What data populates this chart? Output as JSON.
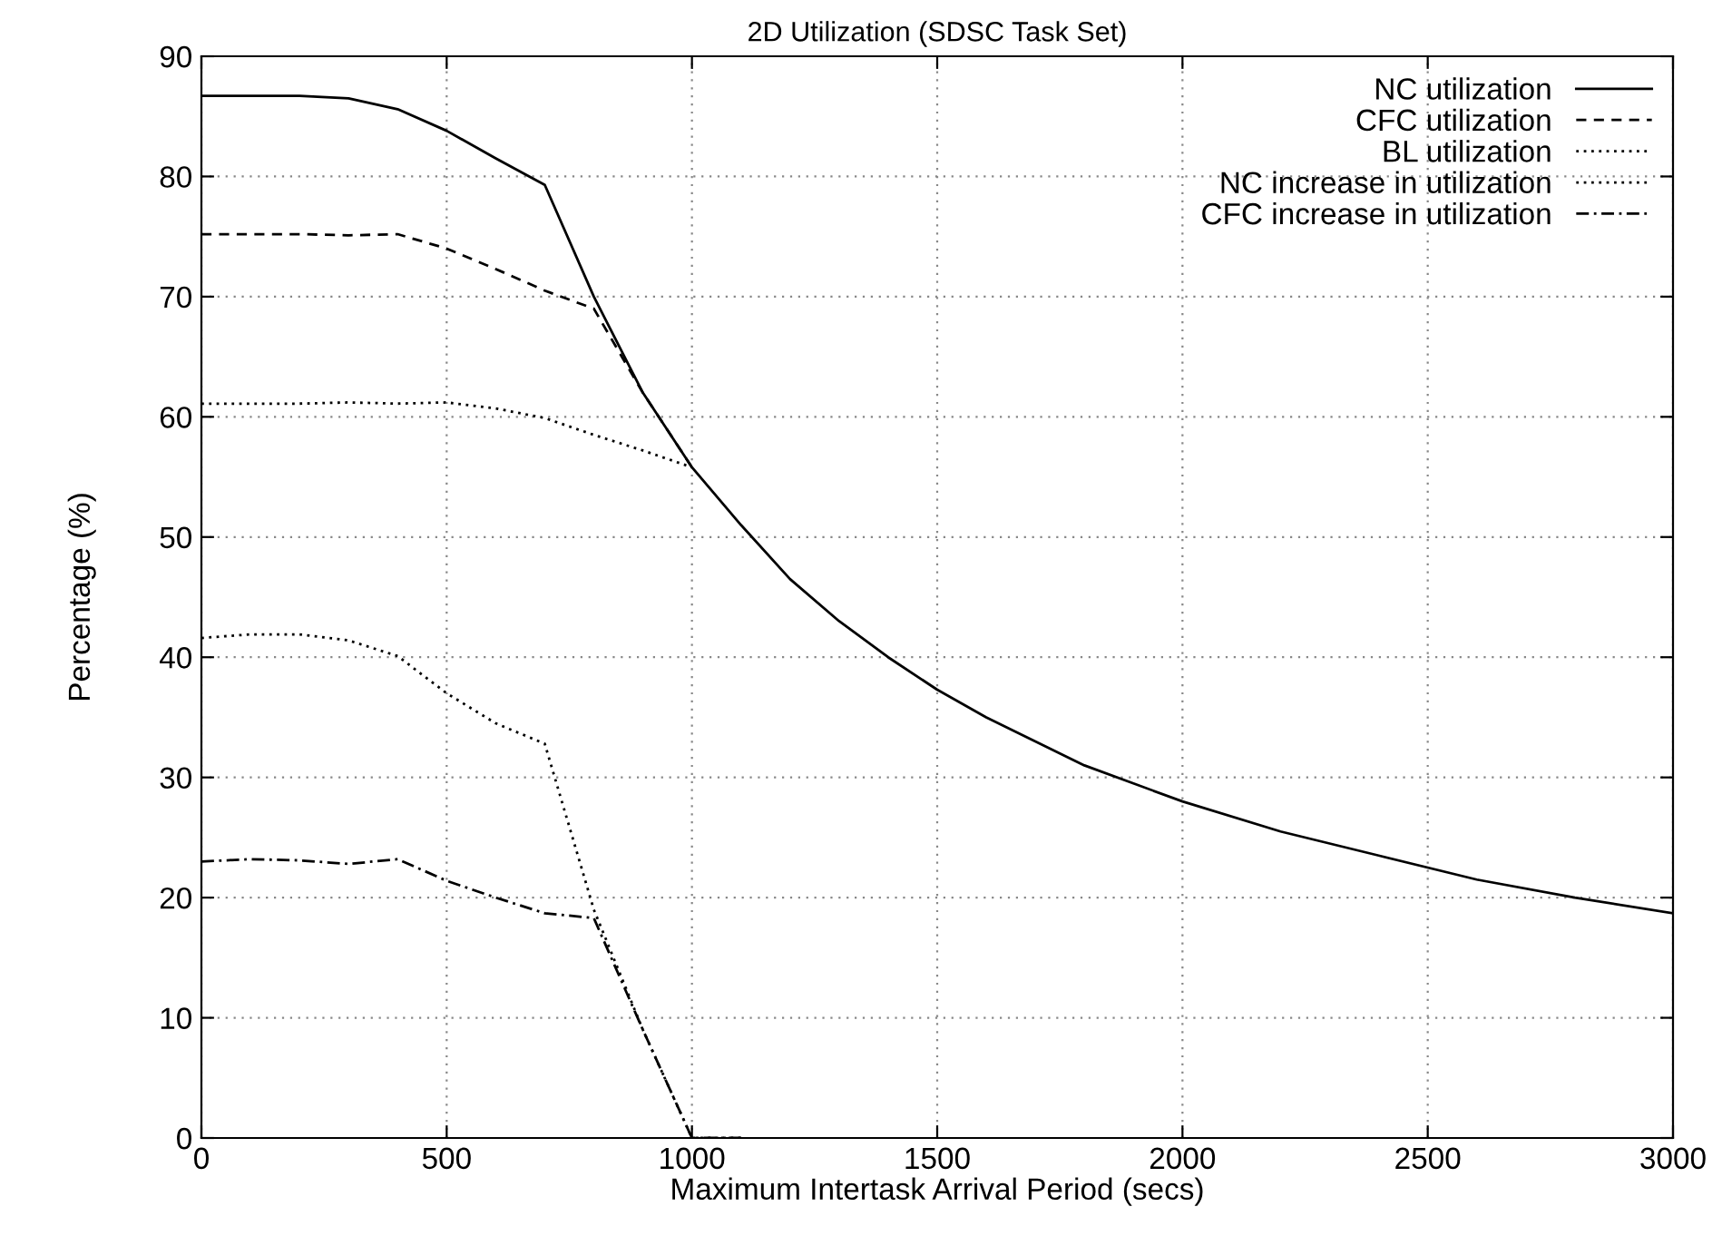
{
  "chart_data": {
    "type": "line",
    "title": "2D Utilization (SDSC Task Set)",
    "xlabel": "Maximum Intertask Arrival Period (secs)",
    "ylabel": "Percentage (%)",
    "xlim": [
      0,
      3000
    ],
    "ylim": [
      0,
      90
    ],
    "xticks": [
      0,
      500,
      1000,
      1500,
      2000,
      2500,
      3000
    ],
    "yticks": [
      0,
      10,
      20,
      30,
      40,
      50,
      60,
      70,
      80,
      90
    ],
    "grid": true,
    "legend": "top right",
    "series": [
      {
        "name": "NC utilization",
        "color": "#000000",
        "line_style": "solid",
        "x": [
          0,
          100,
          200,
          300,
          400,
          500,
          600,
          700,
          800,
          900,
          1000,
          1100,
          1200,
          1300,
          1400,
          1500,
          1600,
          1700,
          1800,
          1900,
          2000,
          2200,
          2400,
          2600,
          2800,
          3000
        ],
        "values": [
          86.7,
          86.7,
          86.7,
          86.5,
          85.6,
          83.8,
          81.5,
          79.3,
          70,
          62,
          55.8,
          51,
          46.5,
          43,
          40,
          37.3,
          35,
          33,
          31,
          29.5,
          28,
          25.5,
          23.5,
          21.5,
          20,
          18.7
        ]
      },
      {
        "name": "CFC utilization",
        "color": "#000000",
        "line_style": "dashed",
        "x": [
          0,
          100,
          200,
          300,
          400,
          500,
          600,
          700,
          800,
          900,
          1000
        ],
        "values": [
          75.2,
          75.2,
          75.2,
          75.1,
          75.2,
          74,
          72.3,
          70.5,
          69,
          62,
          55.8
        ]
      },
      {
        "name": "BL utilization",
        "color": "#000000",
        "line_style": "dotted",
        "x": [
          0,
          100,
          200,
          300,
          400,
          500,
          600,
          700,
          800,
          900,
          1000
        ],
        "values": [
          61.1,
          61.1,
          61.1,
          61.2,
          61.1,
          61.2,
          60.7,
          59.9,
          58.5,
          57.2,
          55.8
        ]
      },
      {
        "name": "NC increase in utilization",
        "color": "#000000",
        "line_style": "dotted",
        "x": [
          0,
          100,
          200,
          300,
          400,
          500,
          600,
          700,
          800,
          900,
          1000,
          1100
        ],
        "values": [
          41.6,
          41.9,
          41.9,
          41.4,
          40.1,
          37,
          34.5,
          32.8,
          19,
          9,
          0,
          0
        ]
      },
      {
        "name": "CFC increase in utilization",
        "color": "#000000",
        "line_style": "dashdot",
        "x": [
          0,
          100,
          200,
          300,
          400,
          500,
          600,
          700,
          800,
          900,
          1000,
          1100
        ],
        "values": [
          23,
          23.2,
          23.1,
          22.8,
          23.2,
          21.4,
          20,
          18.7,
          18.3,
          9,
          0,
          0
        ]
      }
    ]
  }
}
